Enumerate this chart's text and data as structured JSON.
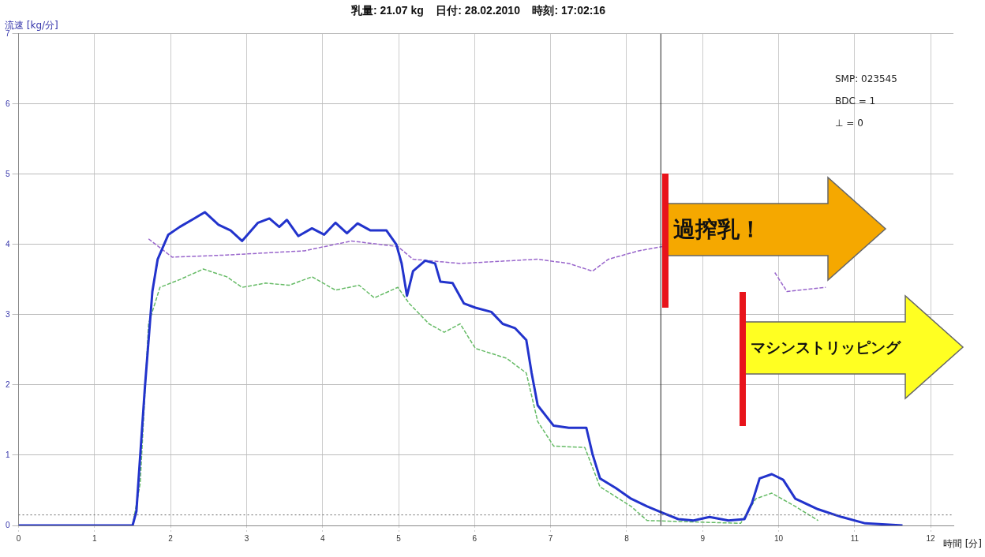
{
  "chart_data": {
    "type": "line",
    "title": "乳量: 21.07 kg    日付: 28.02.2010    時刻: 17:02:16",
    "ylabel": "流速 [kg/分]",
    "xlabel": "時間 [分]",
    "xlim": [
      0,
      12.3
    ],
    "xticks": [
      0,
      1,
      2,
      3,
      4,
      5,
      6,
      7,
      8,
      9,
      10,
      11,
      12
    ],
    "ylim": [
      0,
      7
    ],
    "yticks": [
      0,
      1,
      2,
      3,
      4,
      5,
      6,
      7
    ],
    "grid": true,
    "legend": false,
    "marker": "none",
    "series": [
      {
        "color": "#2233cc",
        "line_style": "solid",
        "x": [
          0,
          1.5,
          1.55,
          1.66,
          1.76,
          1.83,
          1.97,
          2.12,
          2.31,
          2.45,
          2.63,
          2.79,
          2.94,
          3.15,
          3.3,
          3.43,
          3.53,
          3.68,
          3.86,
          4.02,
          4.17,
          4.32,
          4.46,
          4.63,
          4.84,
          4.97,
          5.04,
          5.11,
          5.19,
          5.35,
          5.48,
          5.55,
          5.71,
          5.86,
          6.01,
          6.22,
          6.37,
          6.53,
          6.68,
          6.75,
          6.83,
          7.04,
          7.24,
          7.47,
          7.55,
          7.65,
          7.86,
          8.06,
          8.27,
          8.47,
          8.68,
          8.88,
          9.09,
          9.34,
          9.55,
          9.65,
          9.75,
          9.91,
          10.06,
          10.22,
          10.52,
          10.83,
          11.14,
          11.63
        ],
        "values": [
          0,
          0,
          0.2,
          1.94,
          3.33,
          3.79,
          4.14,
          4.25,
          4.37,
          4.46,
          4.28,
          4.2,
          4.05,
          4.31,
          4.37,
          4.25,
          4.35,
          4.12,
          4.23,
          4.14,
          4.31,
          4.16,
          4.3,
          4.2,
          4.2,
          4.0,
          3.73,
          3.27,
          3.62,
          3.77,
          3.73,
          3.47,
          3.45,
          3.16,
          3.1,
          3.04,
          2.87,
          2.81,
          2.64,
          2.17,
          1.71,
          1.42,
          1.39,
          1.39,
          1.02,
          0.67,
          0.53,
          0.38,
          0.27,
          0.18,
          0.09,
          0.07,
          0.12,
          0.07,
          0.09,
          0.32,
          0.67,
          0.73,
          0.65,
          0.38,
          0.23,
          0.12,
          0.03,
          0
        ]
      },
      {
        "color": "#66bb66",
        "line_style": "dashed",
        "x": [
          1.5,
          1.6,
          1.71,
          1.86,
          2.12,
          2.43,
          2.74,
          2.94,
          3.25,
          3.56,
          3.86,
          4.17,
          4.48,
          4.68,
          4.99,
          5.14,
          5.4,
          5.6,
          5.81,
          6.01,
          6.42,
          6.68,
          6.83,
          7.04,
          7.45,
          7.65,
          8.06,
          8.27,
          9.5,
          9.7,
          9.91,
          10.22,
          10.52
        ],
        "values": [
          0,
          0.6,
          2.87,
          3.39,
          3.5,
          3.65,
          3.54,
          3.39,
          3.45,
          3.42,
          3.54,
          3.35,
          3.42,
          3.24,
          3.39,
          3.16,
          2.87,
          2.75,
          2.87,
          2.52,
          2.38,
          2.17,
          1.48,
          1.13,
          1.11,
          0.55,
          0.27,
          0.07,
          0.03,
          0.38,
          0.46,
          0.27,
          0.07
        ]
      },
      {
        "color": "#9966cc",
        "line_style": "dashed",
        "x": [
          1.71,
          2.02,
          2.74,
          3.76,
          4.38,
          4.99,
          5.19,
          5.81,
          6.83,
          7.24,
          7.55,
          7.76,
          8.16,
          8.47,
          9.0,
          9.95,
          10.11,
          10.62
        ],
        "values": [
          4.08,
          3.82,
          3.85,
          3.91,
          4.05,
          3.97,
          3.79,
          3.73,
          3.79,
          3.73,
          3.62,
          3.79,
          3.91,
          3.97,
          null,
          3.6,
          3.33,
          3.39
        ]
      }
    ],
    "ref_lines": [
      {
        "axis": "x",
        "value": 8.45,
        "color": "#222222",
        "line_style": "solid"
      },
      {
        "axis": "y",
        "value": 0.15,
        "color": "#666666",
        "line_style": "dotted"
      }
    ],
    "annotations": [
      {
        "text": "過搾乳！",
        "x": 8.47,
        "y": 4.0
      },
      "マシンストリッピング",
      "SMP: 023545",
      "BDC = 1",
      "⊥ = 0"
    ]
  }
}
